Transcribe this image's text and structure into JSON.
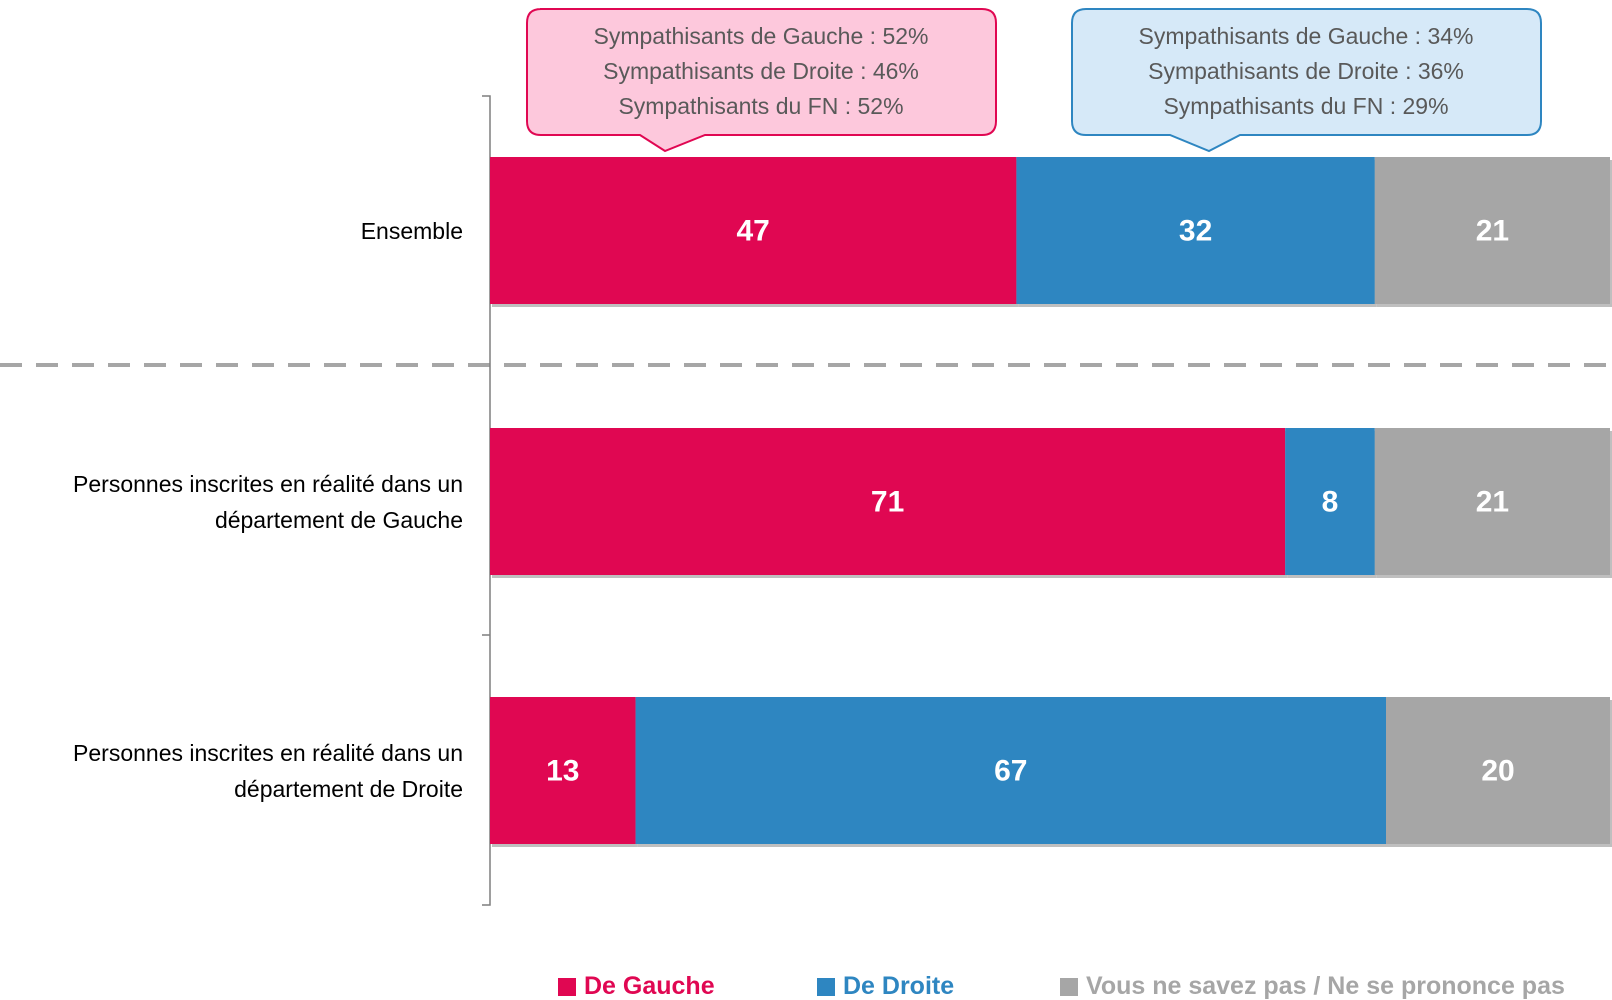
{
  "chart_data": {
    "type": "stacked_bar_horizontal",
    "categories": [
      "Ensemble",
      "Personnes inscrites en réalité dans un département de Gauche",
      "Personnes inscrites en réalité dans un département de Droite"
    ],
    "series": [
      {
        "name": "De Gauche",
        "color": "#e00752",
        "values": [
          47,
          71,
          13
        ]
      },
      {
        "name": "De Droite",
        "color": "#2e86c1",
        "values": [
          32,
          8,
          67
        ]
      },
      {
        "name": "Vous ne savez pas / Ne se prononce pas",
        "color": "#a6a6a6",
        "values": [
          21,
          21,
          20
        ]
      }
    ],
    "xlim": [
      0,
      100
    ],
    "callouts": [
      {
        "lines": [
          "Sympathisants de Gauche : 52%",
          "Sympathisants de Droite : 46%",
          "Sympathisants du FN : 52%"
        ]
      },
      {
        "lines": [
          "Sympathisants de Gauche : 34%",
          "Sympathisants de Droite : 36%",
          "Sympathisants du FN : 29%"
        ]
      }
    ]
  }
}
